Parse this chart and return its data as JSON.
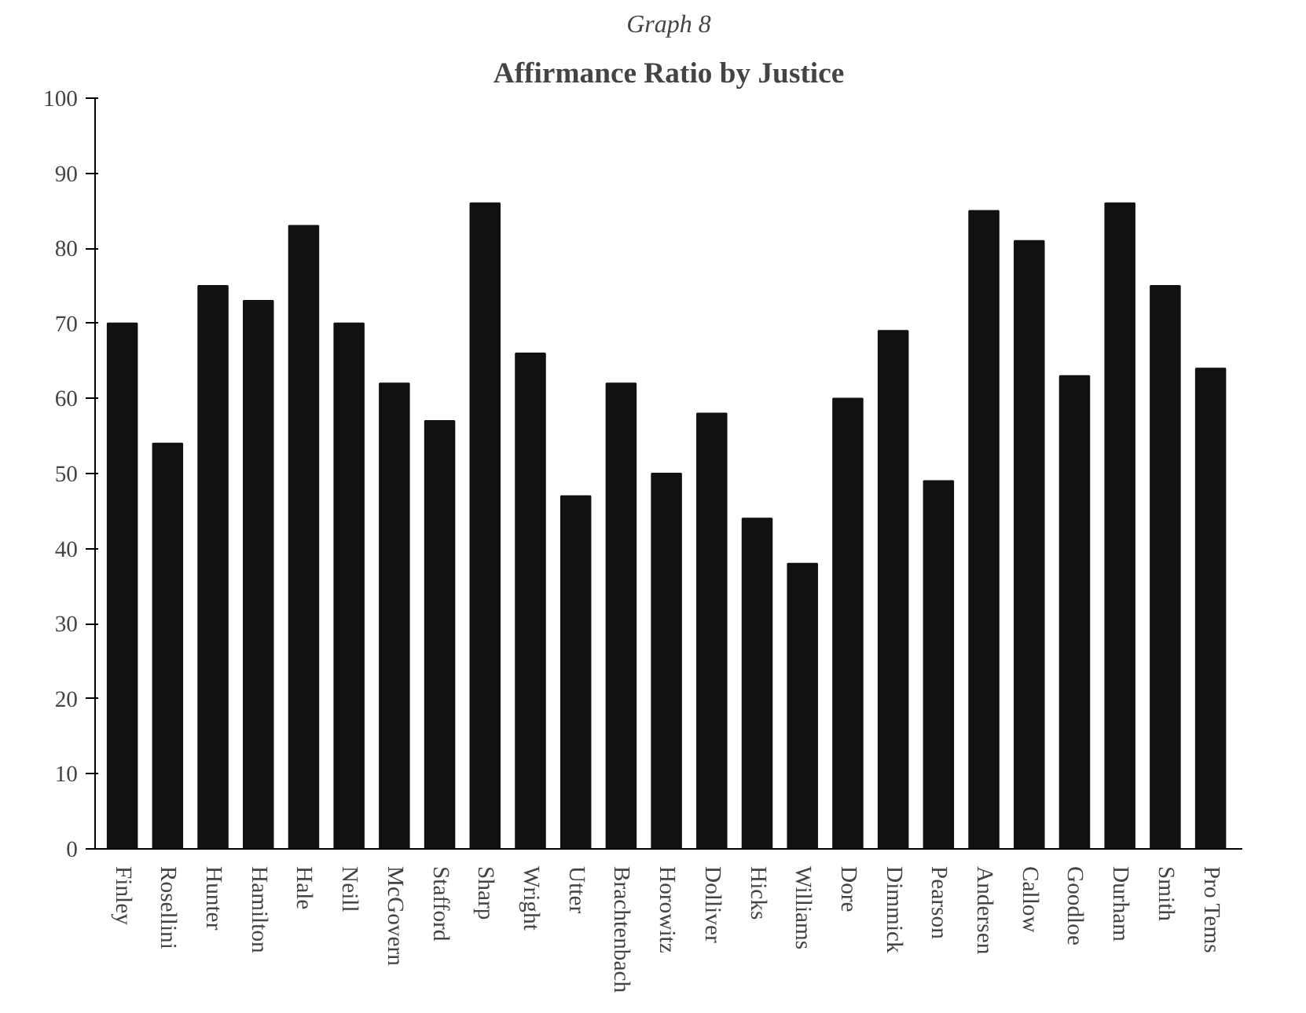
{
  "chart_data": {
    "type": "bar",
    "title": "Affirmance Ratio by Justice",
    "annotations": [
      "Graph 8"
    ],
    "categories": [
      "Finley",
      "Rosellini",
      "Hunter",
      "Hamilton",
      "Hale",
      "Neill",
      "McGovern",
      "Stafford",
      "Sharp",
      "Wright",
      "Utter",
      "Brachtenbach",
      "Horowitz",
      "Dolliver",
      "Hicks",
      "Williams",
      "Dore",
      "Dimmick",
      "Pearson",
      "Andersen",
      "Callow",
      "Goodloe",
      "Durham",
      "Smith",
      "Pro Tems"
    ],
    "values": [
      70,
      54,
      75,
      73,
      83,
      70,
      62,
      57,
      86,
      66,
      47,
      62,
      50,
      58,
      44,
      38,
      60,
      69,
      49,
      85,
      81,
      63,
      86,
      75,
      64
    ],
    "color": "#111111",
    "ylim": [
      0,
      100
    ],
    "yticks": [
      0,
      10,
      20,
      30,
      40,
      50,
      60,
      70,
      80,
      90,
      100
    ],
    "grid": false
  }
}
